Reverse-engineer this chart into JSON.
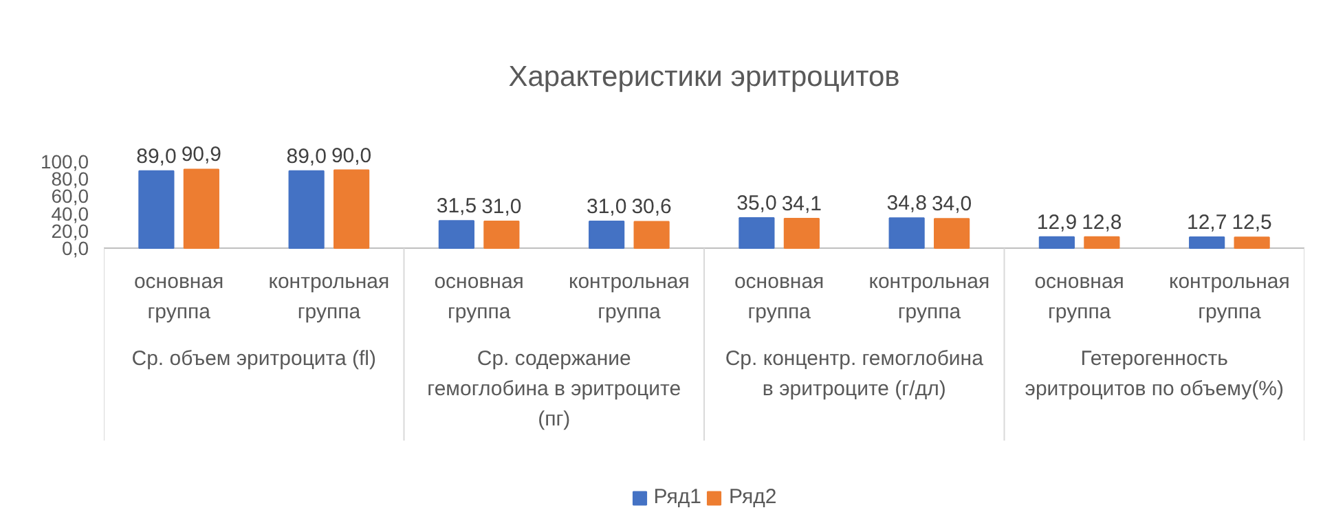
{
  "chart_data": {
    "type": "bar",
    "title": "Характеристики эритроцитов",
    "categories": [
      "основная группа",
      "контрольная группа",
      "основная группа",
      "контрольная группа",
      "основная группа",
      "контрольная группа",
      "основная группа",
      "контрольная группа"
    ],
    "series": [
      {
        "name": "Ряд1",
        "color": "#4472c4",
        "values": [
          89.0,
          89.0,
          31.5,
          31.0,
          35.0,
          34.8,
          12.9,
          12.7
        ],
        "value_labels": [
          "89,0",
          "89,0",
          "31,5",
          "31,0",
          "35,0",
          "34,8",
          "12,9",
          "12,7"
        ]
      },
      {
        "name": "Ряд2",
        "color": "#ed7d31",
        "values": [
          90.9,
          90.0,
          31.0,
          30.6,
          34.1,
          34.0,
          12.8,
          12.5
        ],
        "value_labels": [
          "90,9",
          "90,0",
          "31,0",
          "30,6",
          "34,1",
          "34,0",
          "12,8",
          "12,5"
        ]
      }
    ],
    "annotations": [
      "Ср. объем эритроцита (fl)",
      "Ср. содержание гемоглобина в эритроците (пг)",
      "Ср. концентр. гемоглобина в эритроците (г/дл)",
      "Гетерогенность эритроцитов по объему(%)"
    ],
    "ylim": [
      0,
      100
    ],
    "yticks": [
      {
        "value": 0,
        "label": "0,0"
      },
      {
        "value": 20,
        "label": "20,0"
      },
      {
        "value": 40,
        "label": "40,0"
      },
      {
        "value": 60,
        "label": "60,0"
      },
      {
        "value": 80,
        "label": "80,0"
      },
      {
        "value": 100,
        "label": "100,0"
      }
    ],
    "grid": false,
    "legend": "bottom"
  }
}
